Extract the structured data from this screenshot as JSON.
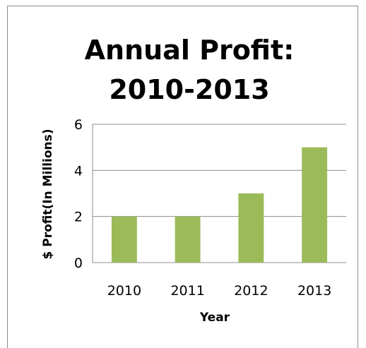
{
  "chart_data": {
    "type": "bar",
    "title_lines": [
      "Annual Profit:",
      "2010-2013"
    ],
    "xlabel": "Year",
    "ylabel": "$ Profit(In Millions)",
    "categories": [
      "2010",
      "2011",
      "2012",
      "2013"
    ],
    "values": [
      2,
      2,
      3,
      5
    ],
    "ylim": [
      0,
      6
    ],
    "yticks": [
      "0",
      "2",
      "4",
      "6"
    ],
    "grid": true,
    "legend": "none",
    "bar_color": "#9bbb59",
    "grid_color": "#8c8c8c"
  }
}
